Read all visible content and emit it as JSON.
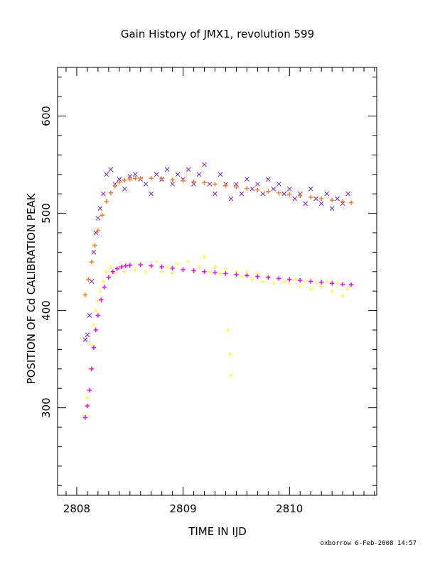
{
  "chart_data": {
    "type": "scatter",
    "title": "Gain History of JMX1, revolution 599",
    "xlabel": "TIME IN IJD",
    "ylabel": "POSITION OF Cd CALIBRATION PEAK",
    "xlim": [
      2807.82,
      2810.82
    ],
    "ylim": [
      210,
      650
    ],
    "x_ticks": [
      2808,
      2809,
      2810
    ],
    "y_ticks": [
      300,
      400,
      500,
      600
    ],
    "grid": false,
    "legend": "none",
    "series": [
      {
        "marker": "x",
        "color": "#7b1fd6",
        "points": [
          [
            2808.08,
            370
          ],
          [
            2808.1,
            375
          ],
          [
            2808.12,
            395
          ],
          [
            2808.14,
            430
          ],
          [
            2808.16,
            460
          ],
          [
            2808.18,
            480
          ],
          [
            2808.2,
            495
          ],
          [
            2808.22,
            505
          ],
          [
            2808.25,
            520
          ],
          [
            2808.28,
            540
          ],
          [
            2808.32,
            545
          ],
          [
            2808.36,
            530
          ],
          [
            2808.4,
            535
          ],
          [
            2808.45,
            525
          ],
          [
            2808.5,
            538
          ],
          [
            2808.55,
            540
          ],
          [
            2808.6,
            535
          ],
          [
            2808.65,
            530
          ],
          [
            2808.7,
            520
          ],
          [
            2808.75,
            540
          ],
          [
            2808.8,
            535
          ],
          [
            2808.85,
            545
          ],
          [
            2808.9,
            530
          ],
          [
            2808.95,
            540
          ],
          [
            2809.0,
            535
          ],
          [
            2809.05,
            545
          ],
          [
            2809.1,
            530
          ],
          [
            2809.15,
            540
          ],
          [
            2809.2,
            550
          ],
          [
            2809.25,
            530
          ],
          [
            2809.3,
            520
          ],
          [
            2809.35,
            540
          ],
          [
            2809.4,
            530
          ],
          [
            2809.45,
            515
          ],
          [
            2809.5,
            530
          ],
          [
            2809.55,
            520
          ],
          [
            2809.6,
            535
          ],
          [
            2809.65,
            525
          ],
          [
            2809.7,
            530
          ],
          [
            2809.75,
            520
          ],
          [
            2809.8,
            535
          ],
          [
            2809.85,
            525
          ],
          [
            2809.9,
            530
          ],
          [
            2809.95,
            520
          ],
          [
            2810.0,
            525
          ],
          [
            2810.05,
            515
          ],
          [
            2810.1,
            520
          ],
          [
            2810.15,
            510
          ],
          [
            2810.2,
            525
          ],
          [
            2810.25,
            515
          ],
          [
            2810.3,
            510
          ],
          [
            2810.35,
            520
          ],
          [
            2810.4,
            505
          ],
          [
            2810.45,
            515
          ],
          [
            2810.5,
            510
          ],
          [
            2810.55,
            520
          ]
        ]
      },
      {
        "marker": "+",
        "color": "#ffff00",
        "points": [
          [
            2808.08,
            292
          ],
          [
            2808.1,
            310
          ],
          [
            2808.12,
            340
          ],
          [
            2808.14,
            365
          ],
          [
            2808.16,
            385
          ],
          [
            2808.18,
            400
          ],
          [
            2808.2,
            410
          ],
          [
            2808.22,
            420
          ],
          [
            2808.25,
            430
          ],
          [
            2808.28,
            440
          ],
          [
            2808.32,
            445
          ],
          [
            2808.36,
            438
          ],
          [
            2808.4,
            445
          ],
          [
            2808.45,
            440
          ],
          [
            2808.5,
            447
          ],
          [
            2808.55,
            442
          ],
          [
            2808.6,
            448
          ],
          [
            2808.65,
            440
          ],
          [
            2808.7,
            445
          ],
          [
            2808.75,
            450
          ],
          [
            2808.8,
            440
          ],
          [
            2808.85,
            445
          ],
          [
            2808.9,
            438
          ],
          [
            2808.95,
            448
          ],
          [
            2809.0,
            442
          ],
          [
            2809.05,
            450
          ],
          [
            2809.1,
            440
          ],
          [
            2809.15,
            445
          ],
          [
            2809.2,
            455
          ],
          [
            2809.25,
            440
          ],
          [
            2809.3,
            445
          ],
          [
            2809.35,
            438
          ],
          [
            2809.4,
            442
          ],
          [
            2809.42,
            380
          ],
          [
            2809.44,
            355
          ],
          [
            2809.45,
            333
          ],
          [
            2809.5,
            440
          ],
          [
            2809.55,
            435
          ],
          [
            2809.6,
            440
          ],
          [
            2809.65,
            432
          ],
          [
            2809.7,
            438
          ],
          [
            2809.75,
            430
          ],
          [
            2809.8,
            435
          ],
          [
            2809.85,
            428
          ],
          [
            2809.9,
            433
          ],
          [
            2809.95,
            430
          ],
          [
            2810.0,
            428
          ],
          [
            2810.05,
            432
          ],
          [
            2810.1,
            425
          ],
          [
            2810.15,
            430
          ],
          [
            2810.2,
            422
          ],
          [
            2810.25,
            428
          ],
          [
            2810.3,
            425
          ],
          [
            2810.35,
            430
          ],
          [
            2810.4,
            420
          ],
          [
            2810.45,
            428
          ],
          [
            2810.5,
            415
          ],
          [
            2810.55,
            422
          ]
        ]
      },
      {
        "marker": "+",
        "color": "#ff7a1a",
        "points": [
          [
            2808.08,
            416
          ],
          [
            2808.11,
            432
          ],
          [
            2808.14,
            450
          ],
          [
            2808.17,
            467
          ],
          [
            2808.2,
            482
          ],
          [
            2808.24,
            498
          ],
          [
            2808.28,
            512
          ],
          [
            2808.32,
            521
          ],
          [
            2808.36,
            528
          ],
          [
            2808.4,
            532
          ],
          [
            2808.45,
            534
          ],
          [
            2808.5,
            535
          ],
          [
            2808.55,
            536
          ],
          [
            2808.6,
            536
          ],
          [
            2808.7,
            536
          ],
          [
            2808.8,
            535.5
          ],
          [
            2808.9,
            534.5
          ],
          [
            2809.0,
            533.5
          ],
          [
            2809.1,
            532.5
          ],
          [
            2809.2,
            531.5
          ],
          [
            2809.3,
            530
          ],
          [
            2809.4,
            528.5
          ],
          [
            2809.5,
            527
          ],
          [
            2809.6,
            525.5
          ],
          [
            2809.7,
            524
          ],
          [
            2809.8,
            522.5
          ],
          [
            2809.9,
            521
          ],
          [
            2810.0,
            519.5
          ],
          [
            2810.1,
            518
          ],
          [
            2810.2,
            516.5
          ],
          [
            2810.3,
            515
          ],
          [
            2810.4,
            513.5
          ],
          [
            2810.5,
            512
          ],
          [
            2810.58,
            511
          ]
        ]
      },
      {
        "marker": "+",
        "color": "#ff00ff",
        "points": [
          [
            2808.08,
            290
          ],
          [
            2808.1,
            302
          ],
          [
            2808.12,
            318
          ],
          [
            2808.14,
            340
          ],
          [
            2808.16,
            362
          ],
          [
            2808.18,
            380
          ],
          [
            2808.2,
            395
          ],
          [
            2808.23,
            411
          ],
          [
            2808.26,
            424
          ],
          [
            2808.3,
            434
          ],
          [
            2808.34,
            440
          ],
          [
            2808.38,
            443
          ],
          [
            2808.42,
            445
          ],
          [
            2808.46,
            446
          ],
          [
            2808.5,
            446.5
          ],
          [
            2808.6,
            447
          ],
          [
            2808.7,
            446
          ],
          [
            2808.8,
            445
          ],
          [
            2808.9,
            443.5
          ],
          [
            2809.0,
            442
          ],
          [
            2809.1,
            441
          ],
          [
            2809.2,
            440
          ],
          [
            2809.3,
            439
          ],
          [
            2809.4,
            438
          ],
          [
            2809.5,
            437
          ],
          [
            2809.6,
            436
          ],
          [
            2809.7,
            435
          ],
          [
            2809.8,
            434
          ],
          [
            2809.9,
            433
          ],
          [
            2810.0,
            432
          ],
          [
            2810.1,
            431
          ],
          [
            2810.2,
            430
          ],
          [
            2810.3,
            429
          ],
          [
            2810.4,
            428
          ],
          [
            2810.5,
            427
          ],
          [
            2810.58,
            426.5
          ]
        ]
      }
    ]
  },
  "footer": {
    "credit": "oxborrow  6-Feb-2008 14:57"
  }
}
